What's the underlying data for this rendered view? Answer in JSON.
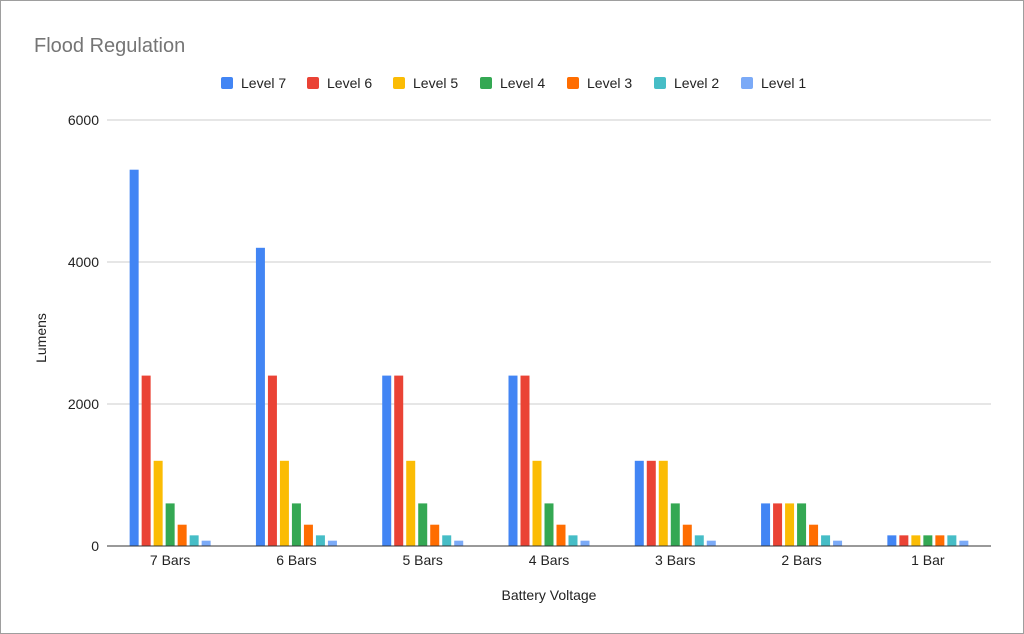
{
  "chart_data": {
    "type": "bar",
    "title": "Flood Regulation",
    "xlabel": "Battery Voltage",
    "ylabel": "Lumens",
    "ylim": [
      0,
      6000
    ],
    "yticks": [
      0,
      2000,
      4000,
      6000
    ],
    "grid": true,
    "legend_position": "top",
    "categories": [
      "7 Bars",
      "6 Bars",
      "5 Bars",
      "4 Bars",
      "3 Bars",
      "2 Bars",
      "1 Bar"
    ],
    "series": [
      {
        "name": "Level 7",
        "color": "#4285f4",
        "values": [
          5300,
          4200,
          2400,
          2400,
          1200,
          600,
          150
        ]
      },
      {
        "name": "Level 6",
        "color": "#ea4335",
        "values": [
          2400,
          2400,
          2400,
          2400,
          1200,
          600,
          150
        ]
      },
      {
        "name": "Level 5",
        "color": "#fbbc04",
        "values": [
          1200,
          1200,
          1200,
          1200,
          1200,
          600,
          150
        ]
      },
      {
        "name": "Level 4",
        "color": "#34a853",
        "values": [
          600,
          600,
          600,
          600,
          600,
          600,
          150
        ]
      },
      {
        "name": "Level 3",
        "color": "#ff6d01",
        "values": [
          300,
          300,
          300,
          300,
          300,
          300,
          150
        ]
      },
      {
        "name": "Level 2",
        "color": "#46bdc6",
        "values": [
          150,
          150,
          150,
          150,
          150,
          150,
          150
        ]
      },
      {
        "name": "Level 1",
        "color": "#7baaf7",
        "values": [
          75,
          75,
          75,
          75,
          75,
          75,
          75
        ]
      }
    ]
  }
}
